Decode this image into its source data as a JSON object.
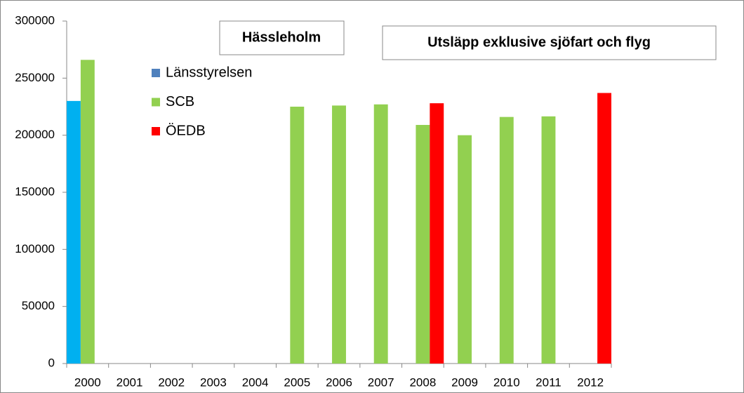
{
  "chart_data": {
    "type": "bar",
    "title": "Hässleholm",
    "subtitle": "Utsläpp exklusive sjöfart och flyg",
    "categories": [
      "2000",
      "2001",
      "2002",
      "2003",
      "2004",
      "2005",
      "2006",
      "2007",
      "2008",
      "2009",
      "2010",
      "2011",
      "2012"
    ],
    "series": [
      {
        "name": "Länsstyrelsen",
        "color": "#00b0f0",
        "legend_color": "#4f81bd",
        "values": [
          230000,
          null,
          null,
          null,
          null,
          null,
          null,
          null,
          null,
          null,
          null,
          null,
          null
        ]
      },
      {
        "name": "SCB",
        "color": "#92d050",
        "legend_color": "#92d050",
        "values": [
          266000,
          null,
          null,
          null,
          null,
          225000,
          226000,
          227000,
          209000,
          200000,
          216000,
          216500,
          null
        ]
      },
      {
        "name": "ÖEDB",
        "color": "#ff0000",
        "legend_color": "#ff0000",
        "values": [
          null,
          null,
          null,
          null,
          null,
          null,
          null,
          null,
          228000,
          null,
          null,
          null,
          237000
        ]
      }
    ],
    "ylim": [
      0,
      300000
    ],
    "yticks": [
      0,
      50000,
      100000,
      150000,
      200000,
      250000,
      300000
    ],
    "grid": false
  }
}
